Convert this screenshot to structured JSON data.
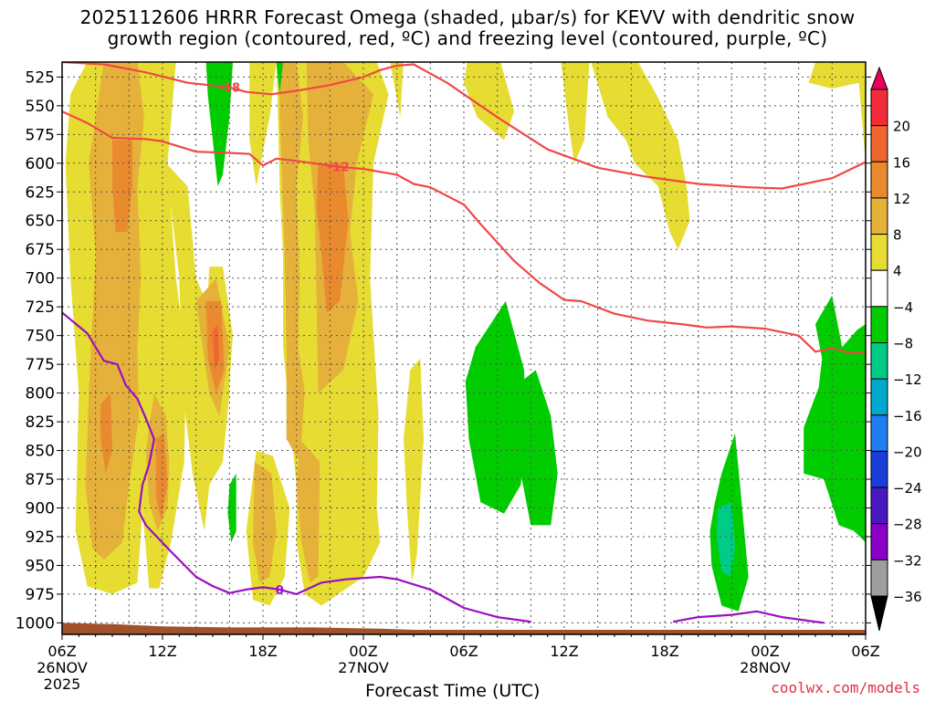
{
  "title_line1": "2025112606 HRRR Forecast Omega (shaded, μbar/s) for KEVV with dendritic snow",
  "title_line2": "growth region (contoured, red, ºC) and freezing level (contoured, purple, ºC)",
  "credit": "coolwx.com/models",
  "chart_data": {
    "type": "heatmap",
    "xlabel": "Forecast Time (UTC)",
    "ylabel": "",
    "ylim": [
      1010,
      512
    ],
    "y_ticks": [
      525,
      550,
      575,
      600,
      625,
      650,
      675,
      700,
      725,
      750,
      775,
      800,
      825,
      850,
      875,
      900,
      925,
      950,
      975,
      1000
    ],
    "x_range_hours": [
      0,
      48
    ],
    "x_ticks": [
      {
        "h": 0,
        "label": "06Z",
        "sub1": "26NOV",
        "sub2": "2025"
      },
      {
        "h": 6,
        "label": "12Z",
        "sub1": "",
        "sub2": ""
      },
      {
        "h": 12,
        "label": "18Z",
        "sub1": "",
        "sub2": ""
      },
      {
        "h": 18,
        "label": "00Z",
        "sub1": "27NOV",
        "sub2": ""
      },
      {
        "h": 24,
        "label": "06Z",
        "sub1": "",
        "sub2": ""
      },
      {
        "h": 30,
        "label": "12Z",
        "sub1": "",
        "sub2": ""
      },
      {
        "h": 36,
        "label": "18Z",
        "sub1": "",
        "sub2": ""
      },
      {
        "h": 42,
        "label": "00Z",
        "sub1": "28NOV",
        "sub2": ""
      },
      {
        "h": 48,
        "label": "06Z",
        "sub1": "",
        "sub2": ""
      }
    ],
    "grid": true,
    "colorbar": {
      "labels": [
        "20",
        "16",
        "12",
        "8",
        "4",
        "−4",
        "−8",
        "−12",
        "−16",
        "−20",
        "−24",
        "−28",
        "−32",
        "−36"
      ],
      "colors": [
        "#e8005a",
        "#f22c3a",
        "#f06630",
        "#ea8a2e",
        "#e6b13a",
        "#e6dc32",
        "#ffffff",
        "#00cc00",
        "#00cc88",
        "#00aacc",
        "#1f7ff2",
        "#1a3fd8",
        "#4a18c0",
        "#8a00c8",
        "#9e9e9e",
        "#000000"
      ]
    },
    "shading": {
      "positive_4_8_color": "#e6dc32",
      "positive_8_12_color": "#e6b13a",
      "positive_12_16_color": "#ea8a2e",
      "positive_16_20_color": "#f06630",
      "positive_20_plus_color": "#f22c3a",
      "negative_4_8_color": "#00cc00",
      "negative_8_12_color": "#00cc88",
      "terrain_color": "#a0522d"
    },
    "contours": [
      {
        "label": "-18",
        "color": "#f04848",
        "label_at_h": 10,
        "points": [
          [
            0,
            512
          ],
          [
            2.5,
            514
          ],
          [
            5,
            521
          ],
          [
            7.5,
            530
          ],
          [
            10,
            534
          ],
          [
            11,
            538
          ],
          [
            12.5,
            540
          ],
          [
            14,
            537
          ],
          [
            16,
            532
          ],
          [
            18,
            525
          ],
          [
            19,
            519
          ],
          [
            20,
            515
          ],
          [
            21,
            514
          ],
          [
            23,
            530
          ],
          [
            26,
            560
          ],
          [
            29,
            588
          ],
          [
            32,
            604
          ],
          [
            35,
            612
          ],
          [
            38,
            618
          ],
          [
            41,
            621
          ],
          [
            43,
            622
          ],
          [
            46,
            613
          ],
          [
            48,
            599
          ]
        ]
      },
      {
        "label": "-12",
        "color": "#f04848",
        "label_at_h": 16.5,
        "points": [
          [
            0,
            555
          ],
          [
            1.5,
            565
          ],
          [
            3,
            578
          ],
          [
            5,
            579
          ],
          [
            6,
            581
          ],
          [
            8,
            590
          ],
          [
            10,
            591
          ],
          [
            11.2,
            592
          ],
          [
            12,
            602
          ],
          [
            12.8,
            596
          ],
          [
            14,
            598
          ],
          [
            16.5,
            603
          ],
          [
            18,
            605
          ],
          [
            20,
            610
          ],
          [
            21,
            618
          ],
          [
            22,
            621
          ],
          [
            24,
            636
          ],
          [
            25,
            653
          ],
          [
            27,
            685
          ],
          [
            28.5,
            704
          ],
          [
            30,
            719
          ],
          [
            31,
            720
          ],
          [
            33,
            731
          ],
          [
            35,
            737
          ],
          [
            37,
            740
          ],
          [
            38.5,
            743
          ],
          [
            40,
            742
          ],
          [
            42,
            744
          ],
          [
            44,
            750
          ],
          [
            45,
            764
          ],
          [
            46,
            761
          ],
          [
            47,
            765
          ],
          [
            48,
            765
          ]
        ]
      },
      {
        "label": "0",
        "color": "#9a10c0",
        "label_at_h": 13,
        "points": [
          [
            0,
            730
          ],
          [
            1.5,
            748
          ],
          [
            2.5,
            772
          ],
          [
            3.3,
            775
          ],
          [
            3.8,
            793
          ],
          [
            4.5,
            805
          ],
          [
            5,
            822
          ],
          [
            5.5,
            840
          ],
          [
            5.2,
            862
          ],
          [
            4.8,
            880
          ],
          [
            4.6,
            903
          ],
          [
            5,
            915
          ],
          [
            6.5,
            938
          ],
          [
            8,
            960
          ],
          [
            9,
            968
          ],
          [
            10,
            974
          ],
          [
            11,
            971
          ],
          [
            12,
            969
          ],
          [
            13,
            971
          ],
          [
            14,
            975
          ],
          [
            15.5,
            965
          ],
          [
            17,
            962
          ],
          [
            19,
            960
          ],
          [
            20,
            962
          ],
          [
            22,
            971
          ],
          [
            24,
            987
          ],
          [
            26,
            995
          ],
          [
            27,
            997
          ],
          [
            28,
            999
          ]
        ]
      },
      {
        "label": "",
        "color": "#9a10c0",
        "label_at_h": -1,
        "points": [
          [
            36.5,
            999
          ],
          [
            38,
            995
          ],
          [
            40,
            993
          ],
          [
            41.5,
            990
          ],
          [
            43,
            995
          ],
          [
            44,
            997
          ],
          [
            45.5,
            1000
          ]
        ]
      }
    ]
  }
}
